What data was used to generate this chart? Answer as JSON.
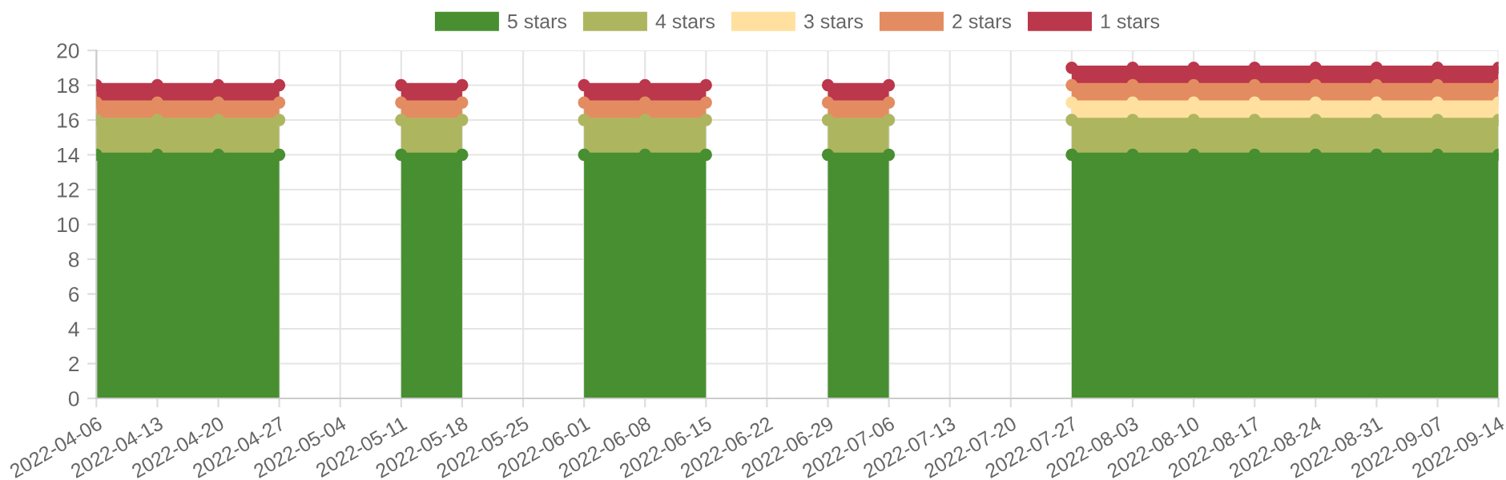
{
  "chart_data": {
    "type": "area",
    "stacked": true,
    "categories": [
      "2022-04-06",
      "2022-04-13",
      "2022-04-20",
      "2022-04-27",
      "2022-05-04",
      "2022-05-11",
      "2022-05-18",
      "2022-05-25",
      "2022-06-01",
      "2022-06-08",
      "2022-06-15",
      "2022-06-22",
      "2022-06-29",
      "2022-07-06",
      "2022-07-13",
      "2022-07-20",
      "2022-07-27",
      "2022-08-03",
      "2022-08-10",
      "2022-08-17",
      "2022-08-24",
      "2022-08-31",
      "2022-09-07",
      "2022-09-14"
    ],
    "series": [
      {
        "name": "5 stars",
        "color": "#488f31",
        "values": [
          14,
          14,
          14,
          14,
          null,
          14,
          14,
          null,
          14,
          14,
          14,
          null,
          14,
          14,
          null,
          null,
          14,
          14,
          14,
          14,
          14,
          14,
          14,
          14
        ]
      },
      {
        "name": "4 stars",
        "color": "#adb65f",
        "values": [
          2,
          2,
          2,
          2,
          null,
          2,
          2,
          null,
          2,
          2,
          2,
          null,
          2,
          2,
          null,
          null,
          2,
          2,
          2,
          2,
          2,
          2,
          2,
          2
        ]
      },
      {
        "name": "3 stars",
        "color": "#ffe09e",
        "values": [
          null,
          null,
          null,
          null,
          null,
          null,
          null,
          null,
          null,
          null,
          null,
          null,
          null,
          null,
          null,
          null,
          1,
          1,
          1,
          1,
          1,
          1,
          1,
          1
        ]
      },
      {
        "name": "2 stars",
        "color": "#e38c61",
        "values": [
          1,
          1,
          1,
          1,
          null,
          1,
          1,
          null,
          1,
          1,
          1,
          null,
          1,
          1,
          null,
          null,
          1,
          1,
          1,
          1,
          1,
          1,
          1,
          1
        ]
      },
      {
        "name": "1 stars",
        "color": "#bb374b",
        "values": [
          1,
          1,
          1,
          1,
          null,
          1,
          1,
          null,
          1,
          1,
          1,
          null,
          1,
          1,
          null,
          null,
          1,
          1,
          1,
          1,
          1,
          1,
          1,
          1
        ]
      }
    ],
    "ylim": [
      0,
      20
    ],
    "yticks": [
      0,
      2,
      4,
      6,
      8,
      10,
      12,
      14,
      16,
      18,
      20
    ],
    "grid": true,
    "legend": "top",
    "marker": "circle"
  }
}
